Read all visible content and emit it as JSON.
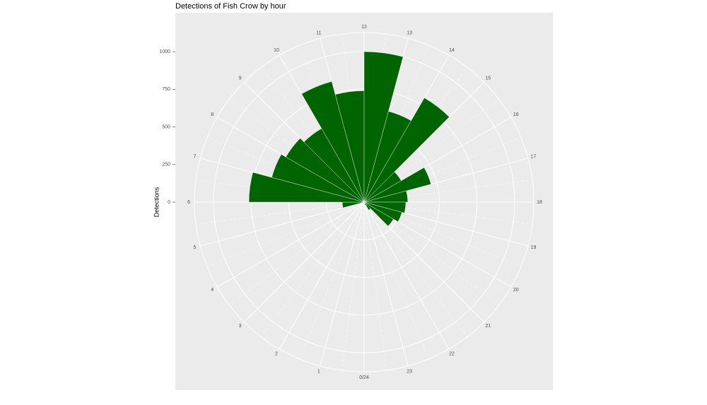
{
  "chart_data": {
    "type": "bar",
    "polar": true,
    "title": "Detections of Fish Crow by hour",
    "ylabel": "Detections",
    "categories": [
      "0/24",
      "1",
      "2",
      "3",
      "4",
      "5",
      "6",
      "7",
      "8",
      "9",
      "10",
      "11",
      "12",
      "13",
      "14",
      "15",
      "16",
      "17",
      "18",
      "19",
      "20",
      "21",
      "22",
      "23"
    ],
    "values": [
      0,
      0,
      0,
      0,
      10,
      145,
      765,
      635,
      600,
      565,
      830,
      740,
      1000,
      625,
      800,
      285,
      460,
      290,
      277,
      260,
      225,
      60,
      20,
      0
    ],
    "color": "#006400",
    "ylim": [
      0,
      1127
    ],
    "yticks": [
      0,
      250,
      500,
      750,
      1000
    ],
    "grid": true
  }
}
